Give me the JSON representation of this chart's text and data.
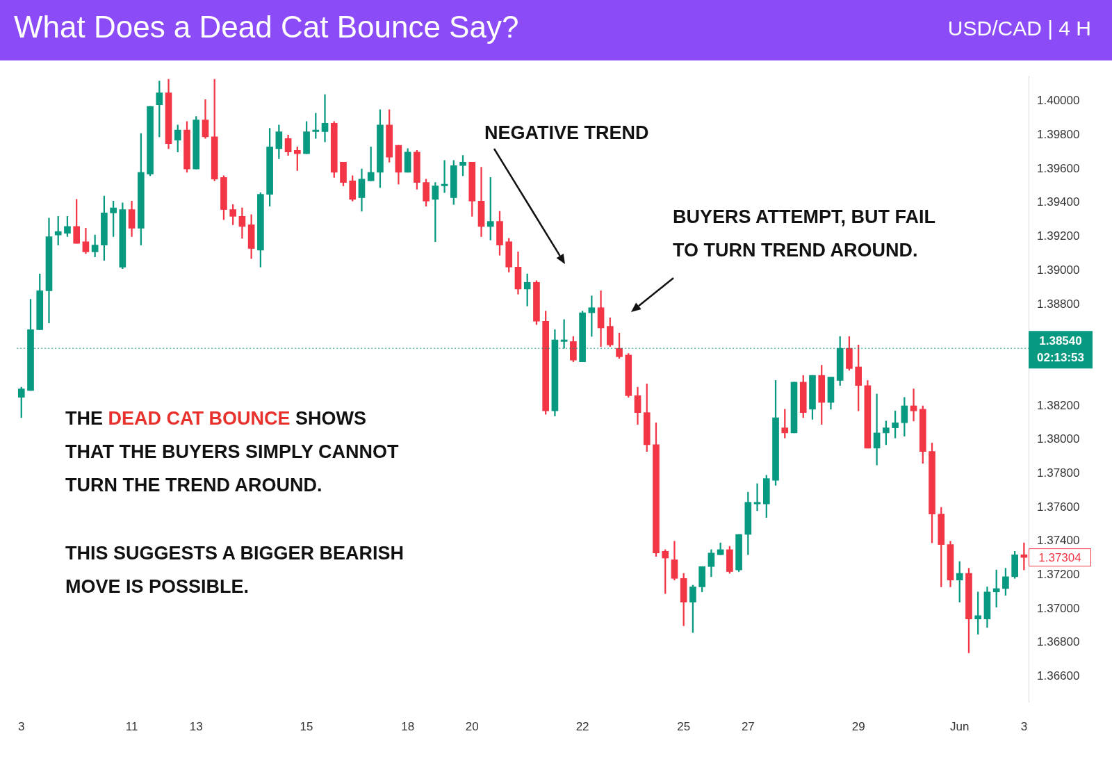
{
  "chart_data": {
    "type": "candlestick",
    "title": "What Does a Dead Cat Bounce Say?",
    "subtitle": "USD/CAD | 4 H",
    "categories": [
      "3",
      null,
      null,
      null,
      null,
      null,
      null,
      null,
      null,
      null,
      null,
      null,
      "11",
      null,
      null,
      null,
      null,
      null,
      null,
      "13",
      null,
      null,
      null,
      null,
      null,
      null,
      null,
      null,
      null,
      null,
      null,
      "15",
      null,
      null,
      null,
      null,
      null,
      null,
      null,
      null,
      null,
      null,
      "18",
      null,
      null,
      null,
      null,
      null,
      null,
      "20",
      null,
      null,
      null,
      null,
      null,
      null,
      null,
      null,
      null,
      null,
      null,
      "22",
      null,
      null,
      null,
      null,
      null,
      null,
      null,
      null,
      null,
      null,
      "25",
      null,
      null,
      null,
      null,
      null,
      null,
      "27",
      null,
      null,
      null,
      null,
      null,
      null,
      null,
      null,
      null,
      null,
      null,
      "29",
      null,
      null,
      null,
      null,
      null,
      null,
      null,
      null,
      null,
      null,
      "Jun",
      null,
      null,
      null,
      null,
      null,
      null,
      "3"
    ],
    "ohlc": [
      [
        1.3825,
        1.3831,
        1.3813,
        1.383
      ],
      [
        1.3829,
        1.3883,
        1.3829,
        1.3865
      ],
      [
        1.3865,
        1.3898,
        1.3865,
        1.3888
      ],
      [
        1.3888,
        1.3931,
        1.3869,
        1.392
      ],
      [
        1.3921,
        1.3932,
        1.3915,
        1.3923
      ],
      [
        1.3922,
        1.3932,
        1.392,
        1.3926
      ],
      [
        1.3926,
        1.3942,
        1.3916,
        1.3916
      ],
      [
        1.3917,
        1.3925,
        1.391,
        1.3911
      ],
      [
        1.3911,
        1.3921,
        1.3908,
        1.3915
      ],
      [
        1.3915,
        1.3944,
        1.3906,
        1.3934
      ],
      [
        1.3934,
        1.3941,
        1.392,
        1.3937
      ],
      [
        1.3902,
        1.394,
        1.3901,
        1.3936
      ],
      [
        1.3936,
        1.3941,
        1.392,
        1.3925
      ],
      [
        1.3925,
        1.3981,
        1.3915,
        1.3958
      ],
      [
        1.3957,
        1.3997,
        1.3956,
        1.3997
      ],
      [
        1.3998,
        1.4012,
        1.3979,
        1.4005
      ],
      [
        1.4005,
        1.4013,
        1.3972,
        1.3975
      ],
      [
        1.3977,
        1.3986,
        1.397,
        1.3983
      ],
      [
        1.3983,
        1.3988,
        1.3958,
        1.396
      ],
      [
        1.396,
        1.3991,
        1.396,
        1.3989
      ],
      [
        1.3989,
        1.4001,
        1.3978,
        1.3979
      ],
      [
        1.3979,
        1.4013,
        1.3953,
        1.3954
      ],
      [
        1.3955,
        1.3956,
        1.393,
        1.3936
      ],
      [
        1.3936,
        1.3939,
        1.3927,
        1.3932
      ],
      [
        1.3932,
        1.3937,
        1.3919,
        1.3926
      ],
      [
        1.3927,
        1.3933,
        1.3907,
        1.3913
      ],
      [
        1.3912,
        1.3946,
        1.3902,
        1.3945
      ],
      [
        1.3945,
        1.3984,
        1.3938,
        1.3973
      ],
      [
        1.3972,
        1.3986,
        1.3966,
        1.3982
      ],
      [
        1.3978,
        1.398,
        1.3968,
        1.397
      ],
      [
        1.3971,
        1.3973,
        1.3959,
        1.3969
      ],
      [
        1.3969,
        1.3988,
        1.3969,
        1.3982
      ],
      [
        1.3982,
        1.3993,
        1.3978,
        1.3983
      ],
      [
        1.3982,
        1.4004,
        1.3976,
        1.3987
      ],
      [
        1.3987,
        1.3988,
        1.3955,
        1.3958
      ],
      [
        1.3964,
        1.3964,
        1.395,
        1.3952
      ],
      [
        1.3953,
        1.3956,
        1.3941,
        1.3942
      ],
      [
        1.3943,
        1.396,
        1.3935,
        1.3954
      ],
      [
        1.3953,
        1.3973,
        1.3953,
        1.3958
      ],
      [
        1.3958,
        1.3995,
        1.3949,
        1.3986
      ],
      [
        1.3986,
        1.3995,
        1.3964,
        1.3967
      ],
      [
        1.3974,
        1.3974,
        1.3951,
        1.3958
      ],
      [
        1.3958,
        1.3972,
        1.3958,
        1.397
      ],
      [
        1.397,
        1.3971,
        1.3948,
        1.3952
      ],
      [
        1.3952,
        1.3954,
        1.3938,
        1.3941
      ],
      [
        1.3942,
        1.3952,
        1.3917,
        1.395
      ],
      [
        1.395,
        1.3965,
        1.3946,
        1.3951
      ],
      [
        1.3943,
        1.3965,
        1.3939,
        1.3962
      ],
      [
        1.3962,
        1.3968,
        1.3956,
        1.3964
      ],
      [
        1.3964,
        1.3964,
        1.3932,
        1.3941
      ],
      [
        1.3941,
        1.3961,
        1.392,
        1.3926
      ],
      [
        1.3926,
        1.3955,
        1.3918,
        1.3929
      ],
      [
        1.3929,
        1.3935,
        1.3909,
        1.3915
      ],
      [
        1.3917,
        1.3919,
        1.3899,
        1.3902
      ],
      [
        1.3902,
        1.3911,
        1.3886,
        1.3889
      ],
      [
        1.3889,
        1.3898,
        1.3879,
        1.3893
      ],
      [
        1.3893,
        1.3894,
        1.3868,
        1.387
      ],
      [
        1.387,
        1.3876,
        1.3815,
        1.3817
      ],
      [
        1.3817,
        1.3865,
        1.3814,
        1.3859
      ],
      [
        1.3858,
        1.3871,
        1.3854,
        1.3859
      ],
      [
        1.3858,
        1.3861,
        1.3846,
        1.3847
      ],
      [
        1.3846,
        1.3876,
        1.3846,
        1.3875
      ],
      [
        1.3875,
        1.3885,
        1.3861,
        1.3878
      ],
      [
        1.3878,
        1.3888,
        1.3855,
        1.3866
      ],
      [
        1.3867,
        1.3872,
        1.3855,
        1.3856
      ],
      [
        1.3854,
        1.3863,
        1.3848,
        1.3849
      ],
      [
        1.385,
        1.3851,
        1.3825,
        1.3826
      ],
      [
        1.3826,
        1.3831,
        1.3809,
        1.3816
      ],
      [
        1.3816,
        1.3833,
        1.3793,
        1.3797
      ],
      [
        1.3797,
        1.381,
        1.3731,
        1.3733
      ],
      [
        1.3734,
        1.3735,
        1.3709,
        1.373
      ],
      [
        1.3729,
        1.374,
        1.3717,
        1.3718
      ],
      [
        1.3718,
        1.3721,
        1.369,
        1.3704
      ],
      [
        1.3704,
        1.3714,
        1.3686,
        1.3713
      ],
      [
        1.3713,
        1.3725,
        1.371,
        1.3725
      ],
      [
        1.3725,
        1.3735,
        1.3719,
        1.3733
      ],
      [
        1.3732,
        1.3739,
        1.3732,
        1.3735
      ],
      [
        1.3735,
        1.3737,
        1.3721,
        1.3722
      ],
      [
        1.3723,
        1.3744,
        1.3722,
        1.3744
      ],
      [
        1.3744,
        1.3769,
        1.3732,
        1.3763
      ],
      [
        1.3762,
        1.3774,
        1.3758,
        1.3763
      ],
      [
        1.3762,
        1.3779,
        1.3754,
        1.3777
      ],
      [
        1.3776,
        1.3835,
        1.3773,
        1.3813
      ],
      [
        1.3807,
        1.3818,
        1.3801,
        1.3804
      ],
      [
        1.3804,
        1.3834,
        1.3804,
        1.3834
      ],
      [
        1.3834,
        1.3838,
        1.3813,
        1.3816
      ],
      [
        1.3818,
        1.3838,
        1.3812,
        1.3838
      ],
      [
        1.3838,
        1.3844,
        1.3809,
        1.3822
      ],
      [
        1.3822,
        1.3837,
        1.3818,
        1.3837
      ],
      [
        1.3835,
        1.3861,
        1.3832,
        1.3854
      ],
      [
        1.3854,
        1.3861,
        1.3841,
        1.3842
      ],
      [
        1.3843,
        1.3856,
        1.3817,
        1.3832
      ],
      [
        1.3832,
        1.3835,
        1.3795,
        1.3795
      ],
      [
        1.3795,
        1.3827,
        1.3785,
        1.3804
      ],
      [
        1.3804,
        1.3811,
        1.3797,
        1.3807
      ],
      [
        1.3807,
        1.3817,
        1.3801,
        1.381
      ],
      [
        1.381,
        1.3825,
        1.3802,
        1.382
      ],
      [
        1.382,
        1.383,
        1.3811,
        1.3817
      ],
      [
        1.3818,
        1.382,
        1.3786,
        1.3793
      ],
      [
        1.3793,
        1.3798,
        1.3739,
        1.3756
      ],
      [
        1.3756,
        1.376,
        1.3713,
        1.3738
      ],
      [
        1.3738,
        1.374,
        1.3713,
        1.3717
      ],
      [
        1.3717,
        1.3728,
        1.3704,
        1.3721
      ],
      [
        1.3721,
        1.3724,
        1.3674,
        1.3694
      ],
      [
        1.3694,
        1.371,
        1.3685,
        1.3696
      ],
      [
        1.3694,
        1.3713,
        1.3689,
        1.371
      ],
      [
        1.371,
        1.3723,
        1.3701,
        1.3712
      ],
      [
        1.3712,
        1.3724,
        1.3708,
        1.3719
      ],
      [
        1.3719,
        1.3734,
        1.3718,
        1.3732
      ],
      [
        1.3732,
        1.3739,
        1.3723,
        1.37304
      ]
    ],
    "colors": [
      "#089981",
      "#089981",
      "#089981",
      "#089981",
      "#089981",
      "#089981",
      "#f23645",
      "#f23645",
      "#089981",
      "#089981",
      "#089981",
      "#089981",
      "#f23645",
      "#089981",
      "#089981",
      "#089981",
      "#f23645",
      "#089981",
      "#f23645",
      "#089981",
      "#f23645",
      "#f23645",
      "#f23645",
      "#f23645",
      "#f23645",
      "#f23645",
      "#089981",
      "#089981",
      "#089981",
      "#f23645",
      "#f23645",
      "#089981",
      "#089981",
      "#089981",
      "#f23645",
      "#f23645",
      "#f23645",
      "#089981",
      "#089981",
      "#089981",
      "#f23645",
      "#f23645",
      "#089981",
      "#f23645",
      "#f23645",
      "#089981",
      "#089981",
      "#089981",
      "#089981",
      "#f23645",
      "#f23645",
      "#089981",
      "#f23645",
      "#f23645",
      "#f23645",
      "#089981",
      "#f23645",
      "#f23645",
      "#089981",
      "#089981",
      "#f23645",
      "#089981",
      "#089981",
      "#f23645",
      "#f23645",
      "#f23645",
      "#f23645",
      "#f23645",
      "#f23645",
      "#f23645",
      "#f23645",
      "#f23645",
      "#f23645",
      "#089981",
      "#089981",
      "#089981",
      "#089981",
      "#f23645",
      "#089981",
      "#089981",
      "#089981",
      "#089981",
      "#089981",
      "#f23645",
      "#089981",
      "#f23645",
      "#089981",
      "#f23645",
      "#089981",
      "#089981",
      "#f23645",
      "#f23645",
      "#f23645",
      "#089981",
      "#089981",
      "#089981",
      "#089981",
      "#f23645",
      "#f23645",
      "#f23645",
      "#f23645",
      "#f23645",
      "#089981",
      "#f23645",
      "#089981",
      "#089981",
      "#089981",
      "#089981",
      "#089981",
      "#f23645"
    ],
    "ylim": [
      1.3645,
      1.4015
    ],
    "yticks": [
      {
        "value": 1.366,
        "label": "1.36600"
      },
      {
        "value": 1.368,
        "label": "1.36800"
      },
      {
        "value": 1.37,
        "label": "1.37000"
      },
      {
        "value": 1.372,
        "label": "1.37200"
      },
      {
        "value": 1.374,
        "label": "1.37400"
      },
      {
        "value": 1.376,
        "label": "1.37600"
      },
      {
        "value": 1.378,
        "label": "1.37800"
      },
      {
        "value": 1.38,
        "label": "1.38000"
      },
      {
        "value": 1.382,
        "label": "1.38200"
      },
      {
        "value": 1.388,
        "label": "1.38800"
      },
      {
        "value": 1.39,
        "label": "1.39000"
      },
      {
        "value": 1.392,
        "label": "1.39200"
      },
      {
        "value": 1.394,
        "label": "1.39400"
      },
      {
        "value": 1.396,
        "label": "1.39600"
      },
      {
        "value": 1.398,
        "label": "1.39800"
      },
      {
        "value": 1.4,
        "label": "1.40000"
      }
    ],
    "ref_lines": [
      {
        "axis": "y",
        "value": 1.3854,
        "label": "1.38540\n02:13:53",
        "color": "#089981",
        "line_style": "dotted"
      }
    ],
    "annotations": [
      "NEGATIVE TREND",
      "BUYERS ATTEMPT, BUT FAIL\nTO TURN TREND AROUND.",
      "THE DEAD CAT BOUNCE SHOWS\nTHAT THE BUYERS SIMPLY CANNOT\nTURN THE TREND AROUND.",
      "THIS SUGGESTS A BIGGER BEARISH\nMOVE IS POSSIBLE.",
      "1.37304"
    ],
    "legend": false
  }
}
